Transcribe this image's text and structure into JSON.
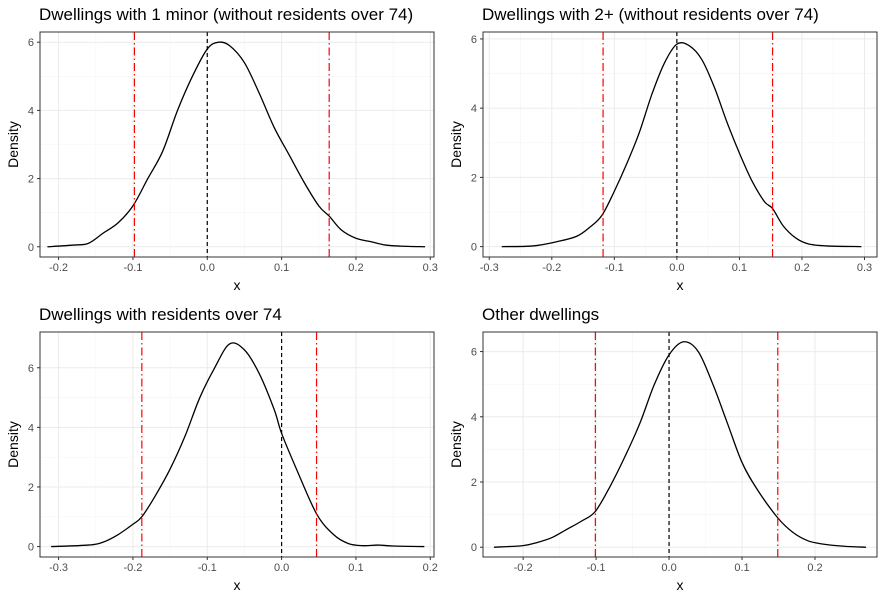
{
  "colors": {
    "density": "#000000",
    "zero_line": "#000000",
    "bounds": "#ff0000",
    "grid_major": "#ebebeb",
    "grid_minor": "#f5f5f5",
    "frame": "#333333",
    "tick_text": "#4d4d4d"
  },
  "chart_data": [
    {
      "type": "line",
      "title": "Dwellings with 1 minor (without residents over 74)",
      "xlabel": "x",
      "ylabel": "Density",
      "xlim": [
        -0.225,
        0.305
      ],
      "ylim": [
        -0.3,
        6.3
      ],
      "xticks": [
        -0.2,
        -0.1,
        0.0,
        0.1,
        0.2,
        0.3
      ],
      "xtick_labels": [
        "-0.2",
        "-0.1",
        "0.0",
        "0.1",
        "0.2",
        "0.3"
      ],
      "yticks": [
        0,
        2,
        4,
        6
      ],
      "ytick_labels": [
        "0",
        "2",
        "4",
        "6"
      ],
      "zero_line": 0.0,
      "bounds": [
        -0.098,
        0.164
      ],
      "grid": true,
      "density": {
        "x": [
          -0.215,
          -0.18,
          -0.16,
          -0.14,
          -0.12,
          -0.1,
          -0.08,
          -0.06,
          -0.04,
          -0.02,
          0.0,
          0.015,
          0.03,
          0.05,
          0.07,
          0.09,
          0.11,
          0.13,
          0.15,
          0.164,
          0.18,
          0.2,
          0.22,
          0.24,
          0.26,
          0.293
        ],
        "y": [
          0.0,
          0.05,
          0.1,
          0.4,
          0.7,
          1.2,
          2.0,
          2.8,
          4.0,
          5.0,
          5.8,
          6.0,
          5.9,
          5.4,
          4.5,
          3.5,
          2.7,
          1.9,
          1.2,
          0.9,
          0.5,
          0.25,
          0.15,
          0.05,
          0.02,
          0.0
        ]
      }
    },
    {
      "type": "line",
      "title": "Dwellings with 2+ (without residents over 74)",
      "xlabel": "x",
      "ylabel": "Density",
      "xlim": [
        -0.31,
        0.32
      ],
      "ylim": [
        -0.3,
        6.2
      ],
      "xticks": [
        -0.3,
        -0.2,
        -0.1,
        0.0,
        0.1,
        0.2,
        0.3
      ],
      "xtick_labels": [
        "-0.3",
        "-0.2",
        "-0.1",
        "0.0",
        "0.1",
        "0.2",
        "0.3"
      ],
      "yticks": [
        0,
        2,
        4,
        6
      ],
      "ytick_labels": [
        "0",
        "2",
        "4",
        "6"
      ],
      "zero_line": 0.0,
      "bounds": [
        -0.118,
        0.153
      ],
      "grid": true,
      "density": {
        "x": [
          -0.28,
          -0.23,
          -0.19,
          -0.16,
          -0.14,
          -0.12,
          -0.1,
          -0.08,
          -0.06,
          -0.04,
          -0.02,
          0.0,
          0.02,
          0.04,
          0.06,
          0.08,
          0.1,
          0.12,
          0.14,
          0.153,
          0.17,
          0.19,
          0.21,
          0.24,
          0.295
        ],
        "y": [
          0.0,
          0.02,
          0.15,
          0.3,
          0.55,
          0.9,
          1.6,
          2.4,
          3.3,
          4.4,
          5.3,
          5.85,
          5.8,
          5.4,
          4.6,
          3.6,
          2.7,
          1.9,
          1.3,
          1.1,
          0.6,
          0.25,
          0.08,
          0.02,
          0.0
        ]
      }
    },
    {
      "type": "line",
      "title": "Dwellings with residents over 74",
      "xlabel": "x",
      "ylabel": "Density",
      "xlim": [
        -0.325,
        0.205
      ],
      "ylim": [
        -0.35,
        7.2
      ],
      "xticks": [
        -0.3,
        -0.2,
        -0.1,
        0.0,
        0.1,
        0.2
      ],
      "xtick_labels": [
        "-0.3",
        "-0.2",
        "-0.1",
        "0.0",
        "0.1",
        "0.2"
      ],
      "yticks": [
        0,
        2,
        4,
        6
      ],
      "ytick_labels": [
        "0",
        "2",
        "4",
        "6"
      ],
      "zero_line": 0.0,
      "bounds": [
        -0.188,
        0.047
      ],
      "grid": true,
      "density": {
        "x": [
          -0.31,
          -0.26,
          -0.24,
          -0.22,
          -0.2,
          -0.188,
          -0.17,
          -0.15,
          -0.13,
          -0.11,
          -0.09,
          -0.07,
          -0.05,
          -0.03,
          -0.01,
          0.0,
          0.02,
          0.047,
          0.07,
          0.09,
          0.11,
          0.13,
          0.15,
          0.192
        ],
        "y": [
          0.0,
          0.05,
          0.15,
          0.4,
          0.75,
          1.0,
          1.7,
          2.6,
          3.7,
          5.0,
          6.0,
          6.8,
          6.6,
          5.8,
          4.6,
          3.8,
          2.6,
          1.1,
          0.4,
          0.1,
          0.03,
          0.05,
          0.02,
          0.0
        ]
      }
    },
    {
      "type": "line",
      "title": "Other dwellings",
      "xlabel": "x",
      "ylabel": "Density",
      "xlim": [
        -0.255,
        0.285
      ],
      "ylim": [
        -0.3,
        6.6
      ],
      "xticks": [
        -0.2,
        -0.1,
        0.0,
        0.1,
        0.2
      ],
      "xtick_labels": [
        "-0.2",
        "-0.1",
        "0.0",
        "0.1",
        "0.2"
      ],
      "yticks": [
        0,
        2,
        4,
        6
      ],
      "ytick_labels": [
        "0",
        "2",
        "4",
        "6"
      ],
      "zero_line": 0.0,
      "bounds": [
        -0.101,
        0.149
      ],
      "grid": true,
      "density": {
        "x": [
          -0.24,
          -0.2,
          -0.18,
          -0.16,
          -0.14,
          -0.12,
          -0.101,
          -0.08,
          -0.06,
          -0.04,
          -0.02,
          0.0,
          0.02,
          0.04,
          0.06,
          0.08,
          0.1,
          0.12,
          0.149,
          0.17,
          0.19,
          0.21,
          0.24,
          0.27
        ],
        "y": [
          0.0,
          0.05,
          0.15,
          0.3,
          0.55,
          0.8,
          1.1,
          1.9,
          2.8,
          3.8,
          5.0,
          5.9,
          6.3,
          6.0,
          5.0,
          3.8,
          2.6,
          1.8,
          0.9,
          0.45,
          0.2,
          0.1,
          0.03,
          0.0
        ]
      }
    }
  ]
}
